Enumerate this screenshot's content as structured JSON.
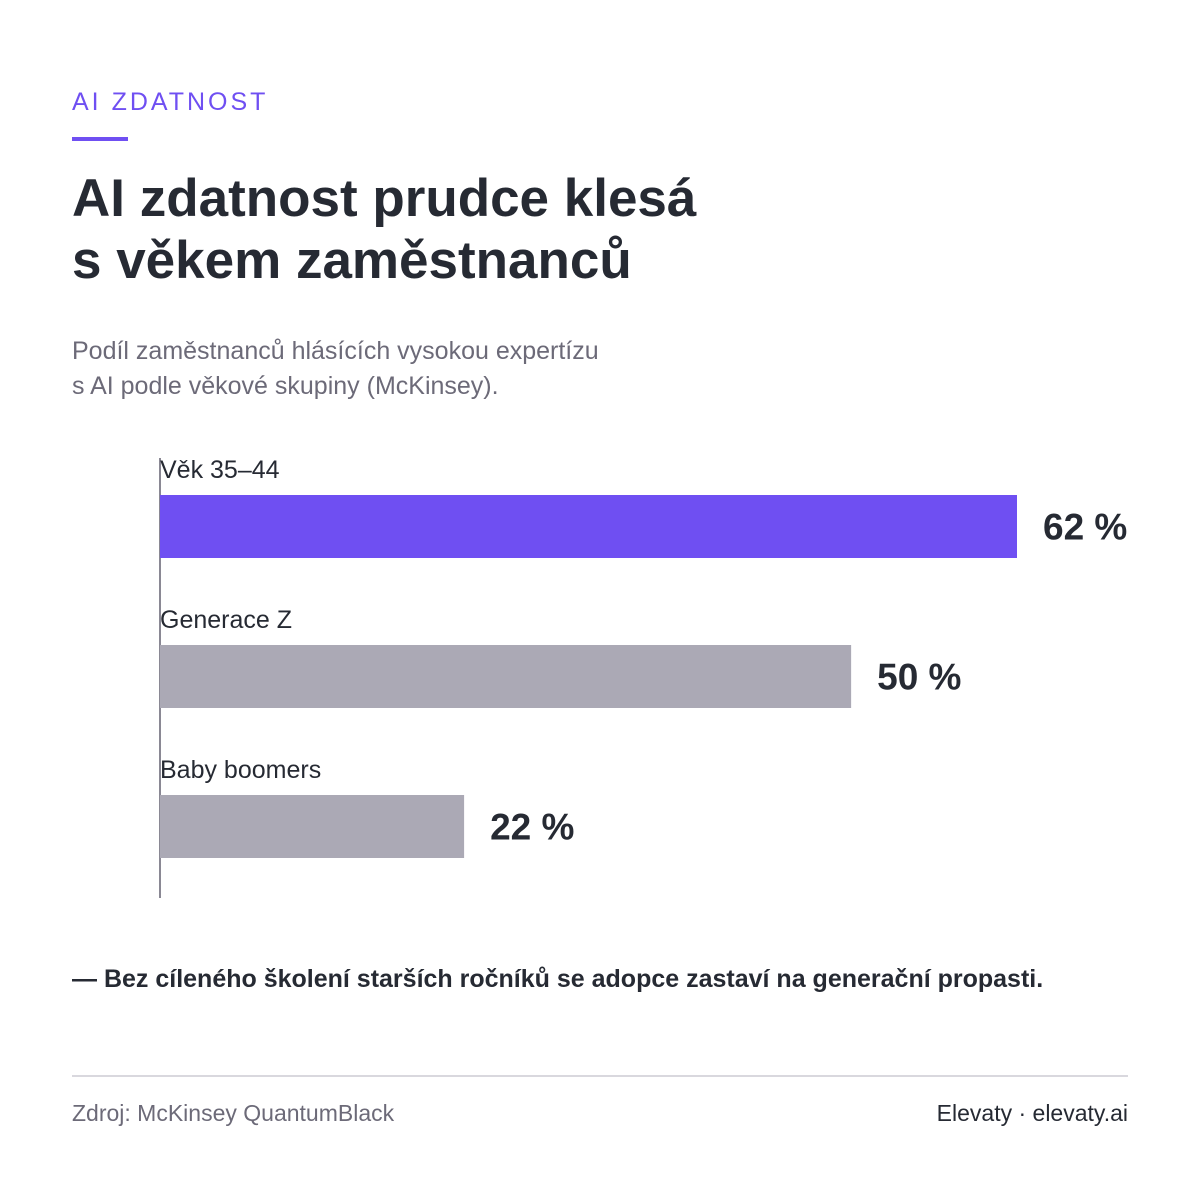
{
  "header": {
    "eyebrow": "AI ZDATNOST",
    "title_line1": "AI zdatnost prudce klesá",
    "title_line2": "s věkem zaměstnanců",
    "subtitle_line1": "Podíl zaměstnanců hlásících vysokou expertízu",
    "subtitle_line2": "s AI podle věkové skupiny (McKinsey)."
  },
  "chart_data": {
    "type": "bar",
    "orientation": "horizontal",
    "categories": [
      "Věk 35–44",
      "Generace Z",
      "Baby boomers"
    ],
    "values": [
      62,
      50,
      22
    ],
    "value_labels": [
      "62 %",
      "50 %",
      "22 %"
    ],
    "xlim": [
      0,
      100
    ],
    "grid": false,
    "colors": [
      "#6f4ff2",
      "#aba9b5",
      "#aba9b5"
    ]
  },
  "note": "— Bez cíleného školení starších ročníků se adopce zastaví na generační propasti.",
  "footer": {
    "source": "Zdroj: McKinsey QuantumBlack",
    "brand": "Elevaty · elevaty.ai"
  },
  "colors": {
    "accent": "#6f4ff2",
    "muted_bar": "#aba9b5",
    "text": "#262a33",
    "muted_text": "#6c6a78"
  }
}
